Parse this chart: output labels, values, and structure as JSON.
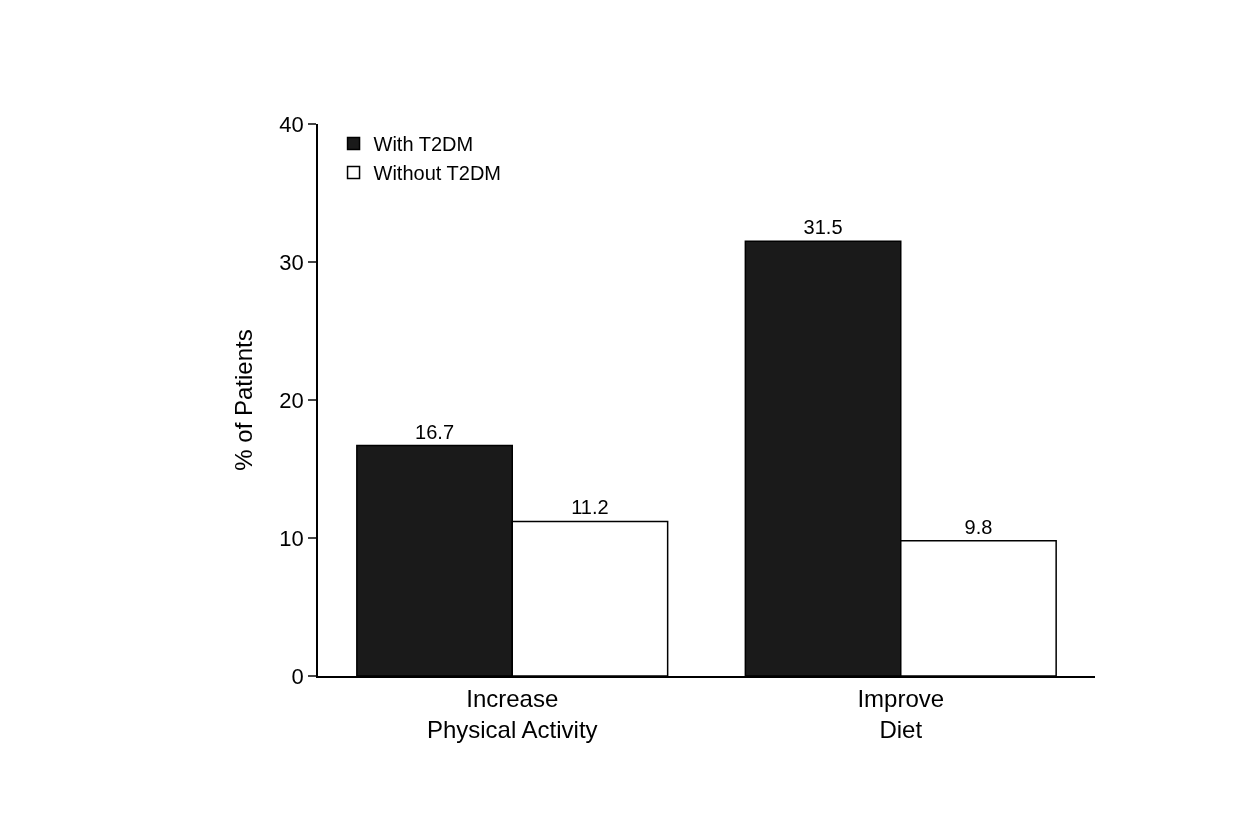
{
  "chart_data": {
    "type": "bar",
    "ylabel": "% of Patients",
    "categories": [
      "Increase\nPhysical Activity",
      "Improve\nDiet"
    ],
    "series": [
      {
        "name": "With T2DM",
        "color": "#1a1a1a",
        "values": [
          16.7,
          31.5
        ]
      },
      {
        "name": "Without T2DM",
        "color": "#ffffff",
        "values": [
          11.2,
          9.8
        ]
      }
    ],
    "ylim": [
      0,
      40
    ],
    "yticks": [
      0,
      10,
      20,
      30,
      40
    ],
    "grid": false,
    "legend": "top left",
    "data_labels": true
  }
}
